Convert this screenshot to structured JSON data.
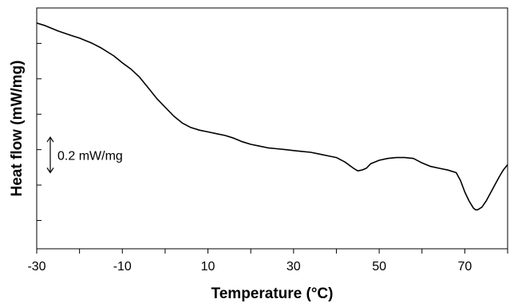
{
  "chart_data": {
    "type": "line",
    "title": "",
    "xlabel": "Temperature (°C)",
    "ylabel": "Heat flow (mW/mg)",
    "xlim": [
      -30,
      80
    ],
    "ylim": [
      -1.36,
      0.0
    ],
    "x_ticks": [
      -30,
      -10,
      10,
      30,
      50,
      70
    ],
    "x_tick_labels": [
      "-30",
      "-10",
      "10",
      "30",
      "50",
      "70"
    ],
    "grid": false,
    "legend": "none",
    "scale_bar": {
      "label": "0.2 mW/mg",
      "value": 0.2,
      "y_from": -0.93,
      "y_to": -0.73
    },
    "series": [
      {
        "color": "#000000",
        "x": [
          -30,
          -28,
          -25,
          -22,
          -20,
          -17,
          -15,
          -12,
          -10,
          -8,
          -6,
          -4,
          -2,
          0,
          2,
          4,
          6,
          8,
          10,
          12,
          14,
          16,
          18,
          20,
          22,
          24,
          26,
          28,
          30,
          32,
          34,
          36,
          38,
          40,
          42,
          44,
          45,
          46,
          47,
          48,
          50,
          52,
          54,
          56,
          58,
          60,
          62,
          64,
          66,
          68,
          69,
          70,
          71,
          72,
          72.5,
          73,
          74,
          75,
          76,
          77,
          78,
          79,
          80
        ],
        "y": [
          -0.085,
          -0.1,
          -0.13,
          -0.155,
          -0.17,
          -0.2,
          -0.225,
          -0.27,
          -0.31,
          -0.345,
          -0.39,
          -0.45,
          -0.51,
          -0.56,
          -0.61,
          -0.65,
          -0.675,
          -0.69,
          -0.7,
          -0.71,
          -0.72,
          -0.735,
          -0.755,
          -0.77,
          -0.78,
          -0.79,
          -0.795,
          -0.8,
          -0.805,
          -0.81,
          -0.815,
          -0.825,
          -0.835,
          -0.845,
          -0.87,
          -0.905,
          -0.92,
          -0.915,
          -0.905,
          -0.88,
          -0.86,
          -0.85,
          -0.845,
          -0.845,
          -0.85,
          -0.875,
          -0.895,
          -0.905,
          -0.915,
          -0.93,
          -0.975,
          -1.04,
          -1.09,
          -1.13,
          -1.14,
          -1.14,
          -1.125,
          -1.09,
          -1.045,
          -1.0,
          -0.955,
          -0.915,
          -0.885
        ]
      }
    ]
  }
}
